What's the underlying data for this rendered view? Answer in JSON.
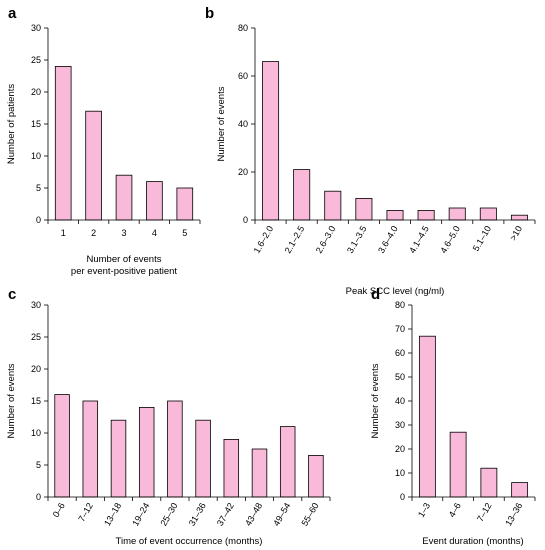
{
  "chart_data": [
    {
      "id": "a",
      "panel_label": "a",
      "type": "bar",
      "categories": [
        "1",
        "2",
        "3",
        "4",
        "5"
      ],
      "values": [
        24,
        17,
        7,
        6,
        5
      ],
      "xlabel": [
        "Number of events",
        "per event-positive patient"
      ],
      "ylabel": "Number of patients",
      "ylim": [
        0,
        30
      ],
      "yticks": [
        0,
        5,
        10,
        15,
        20,
        25,
        30
      ],
      "x_tick_rotation": 0,
      "bar_color": "#f9bad9",
      "grid": false
    },
    {
      "id": "b",
      "panel_label": "b",
      "type": "bar",
      "categories": [
        "1.6–2.0",
        "2.1–2.5",
        "2.6–3.0",
        "3.1–3.5",
        "3.6–4.0",
        "4.1–4.5",
        "4.6–5.0",
        "5.1–10",
        ">10"
      ],
      "values": [
        66,
        21,
        12,
        9,
        4,
        4,
        5,
        5,
        2
      ],
      "xlabel": [
        "Peak SCC level (ng/ml)"
      ],
      "ylabel": "Number of events",
      "ylim": [
        0,
        80
      ],
      "yticks": [
        0,
        20,
        40,
        60,
        80
      ],
      "x_tick_rotation": -60,
      "bar_color": "#f9bad9",
      "grid": false
    },
    {
      "id": "c",
      "panel_label": "c",
      "type": "bar",
      "categories": [
        "0–6",
        "7–12",
        "13–18",
        "19–24",
        "25–30",
        "31–36",
        "37–42",
        "43–48",
        "49–54",
        "55–60"
      ],
      "values": [
        16,
        15,
        12,
        14,
        15,
        12,
        9,
        7.5,
        11,
        6.5
      ],
      "xlabel": [
        "Time of event occurrence (months)"
      ],
      "ylabel": "Number of events",
      "ylim": [
        0,
        30
      ],
      "yticks": [
        0,
        5,
        10,
        15,
        20,
        25,
        30
      ],
      "x_tick_rotation": -60,
      "bar_color": "#f9bad9",
      "grid": false
    },
    {
      "id": "d",
      "panel_label": "d",
      "type": "bar",
      "categories": [
        "1–3",
        "4–6",
        "7–12",
        "13–36"
      ],
      "values": [
        67,
        27,
        12,
        6
      ],
      "xlabel": [
        "Event duration (months)"
      ],
      "ylabel": "Number of events",
      "ylim": [
        0,
        80
      ],
      "yticks": [
        0,
        10,
        20,
        30,
        40,
        50,
        60,
        70,
        80
      ],
      "x_tick_rotation": -60,
      "bar_color": "#f9bad9",
      "grid": false
    }
  ]
}
